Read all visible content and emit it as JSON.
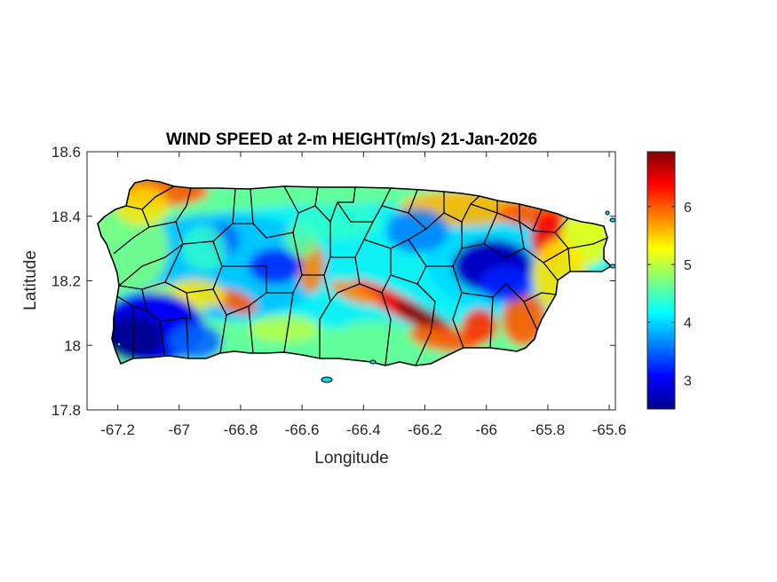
{
  "chart_data": {
    "type": "heatmap",
    "title": "WIND SPEED at 2-m HEIGHT(m/s) 21-Jan-2026",
    "xlabel": "Longitude",
    "ylabel": "Latitude",
    "xlim": [
      -67.3,
      -65.58
    ],
    "ylim": [
      17.8,
      18.6
    ],
    "x_ticks": [
      -67.2,
      -67,
      -66.8,
      -66.6,
      -66.4,
      -66.2,
      -66,
      -65.8,
      -65.6
    ],
    "x_tick_labels": [
      "-67.2",
      "-67",
      "-66.8",
      "-66.6",
      "-66.4",
      "-66.2",
      "-66",
      "-65.8",
      "-65.6"
    ],
    "y_ticks": [
      17.8,
      18,
      18.2,
      18.4,
      18.6
    ],
    "y_tick_labels": [
      "17.8",
      "18",
      "18.2",
      "18.4",
      "18.6"
    ],
    "colormap": "jet",
    "colorbar": {
      "range": [
        2.5,
        6.95
      ],
      "ticks": [
        3,
        4,
        5,
        6
      ],
      "tick_labels": [
        "3",
        "4",
        "5",
        "6"
      ],
      "placement": "right"
    },
    "region": "Puerto Rico",
    "approx_field_features": [
      {
        "feature": "minimum",
        "lon": -67.12,
        "lat": 18.02,
        "value": 2.6
      },
      {
        "feature": "minimum",
        "lon": -66.0,
        "lat": 18.23,
        "value": 2.8
      },
      {
        "feature": "minimum",
        "lon": -66.73,
        "lat": 18.25,
        "value": 3.3
      },
      {
        "feature": "maximum",
        "lon": -66.28,
        "lat": 18.12,
        "value": 6.9
      },
      {
        "feature": "maximum",
        "lon": -65.76,
        "lat": 18.38,
        "value": 6.6
      },
      {
        "feature": "maximum",
        "lon": -67.1,
        "lat": 18.49,
        "value": 6.2
      }
    ]
  },
  "colors": {
    "axes_frame": "#262626",
    "border_lines": "#000000",
    "background": "#ffffff"
  }
}
